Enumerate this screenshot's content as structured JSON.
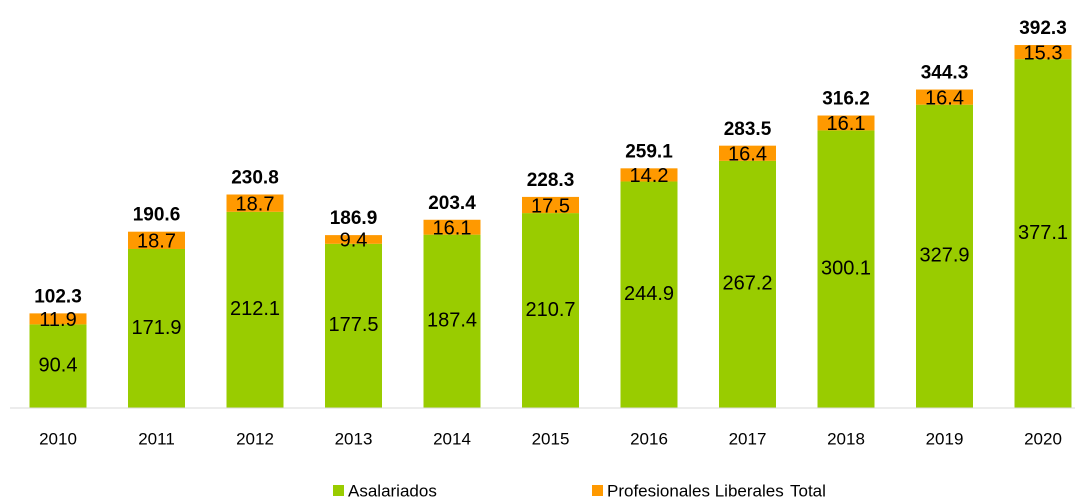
{
  "chart_data": {
    "type": "bar",
    "stacked": true,
    "categories": [
      "2010",
      "2011",
      "2012",
      "2013",
      "2014",
      "2015",
      "2016",
      "2017",
      "2018",
      "2019",
      "2020"
    ],
    "series": [
      {
        "name": "Asalariados",
        "color": "#99cc00",
        "values": [
          90.4,
          171.9,
          212.1,
          177.5,
          187.4,
          210.7,
          244.9,
          267.2,
          300.1,
          327.9,
          377.1
        ]
      },
      {
        "name": "Profesionales Liberales",
        "color": "#ff9900",
        "values": [
          11.9,
          18.7,
          18.7,
          9.4,
          16.1,
          17.5,
          14.2,
          16.4,
          16.1,
          16.4,
          15.3
        ]
      },
      {
        "name": "Total",
        "values": [
          102.3,
          190.6,
          230.8,
          186.9,
          203.4,
          228.3,
          259.1,
          283.5,
          316.2,
          344.3,
          392.3
        ]
      }
    ],
    "ylim": [
      0,
      420
    ]
  }
}
